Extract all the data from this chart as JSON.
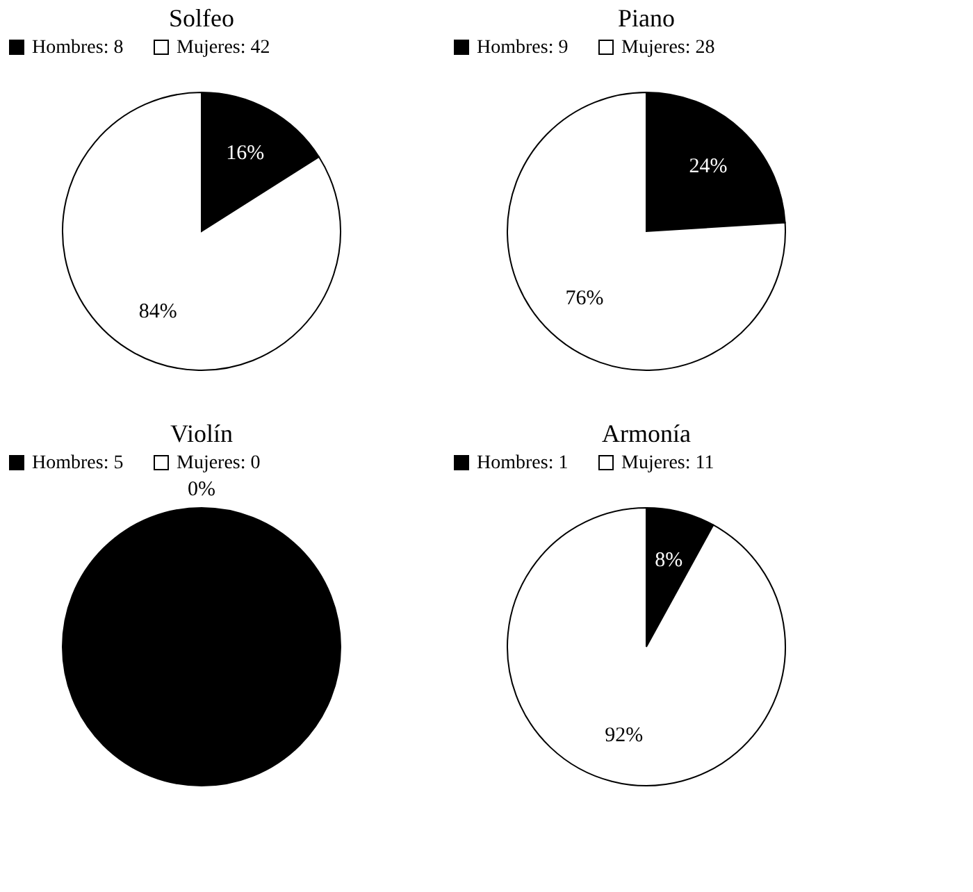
{
  "chart_data": [
    {
      "type": "pie",
      "title": "Solfeo",
      "categories": [
        "Hombres: 8",
        "Mujeres: 42"
      ],
      "values": [
        16,
        84
      ],
      "colors": [
        "#000000",
        "#ffffff"
      ],
      "value_labels": [
        "16%",
        "84%"
      ],
      "legend": "top"
    },
    {
      "type": "pie",
      "title": "Piano",
      "categories": [
        "Hombres: 9",
        "Mujeres: 28"
      ],
      "values": [
        24,
        76
      ],
      "colors": [
        "#000000",
        "#ffffff"
      ],
      "value_labels": [
        "24%",
        "76%"
      ],
      "legend": "top"
    },
    {
      "type": "pie",
      "title": "Violín",
      "categories": [
        "Hombres: 5",
        "Mujeres: 0"
      ],
      "values": [
        100,
        0
      ],
      "colors": [
        "#000000",
        "#ffffff"
      ],
      "value_labels": [
        null,
        "0%"
      ],
      "legend": "top"
    },
    {
      "type": "pie",
      "title": "Armonía",
      "categories": [
        "Hombres: 1",
        "Mujeres: 11"
      ],
      "values": [
        8,
        92
      ],
      "colors": [
        "#000000",
        "#ffffff"
      ],
      "value_labels": [
        "8%",
        "92%"
      ],
      "legend": "top"
    }
  ]
}
